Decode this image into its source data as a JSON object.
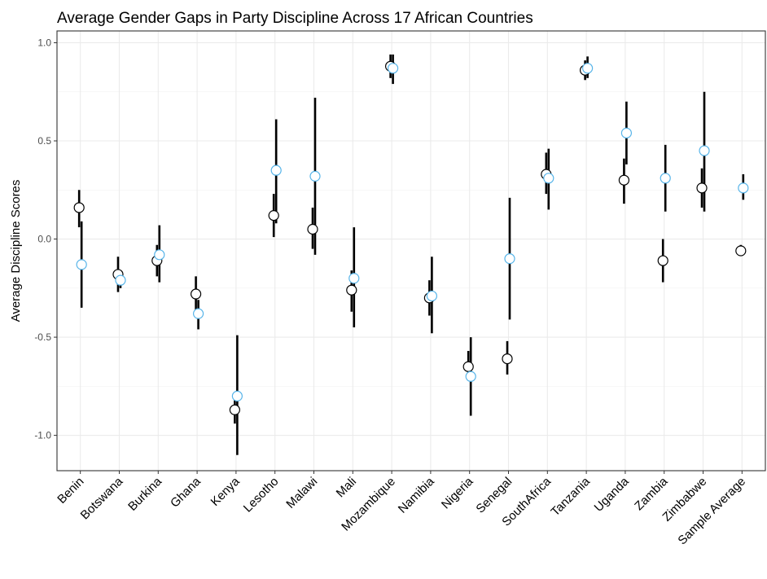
{
  "chart_data": {
    "type": "dot-errorbar",
    "title": "Average Gender Gaps in Party Discipline Across 17 African Countries",
    "y_label": "Average Discipline Scores",
    "categories": [
      "Benin",
      "Botswana",
      "Burkina",
      "Ghana",
      "Kenya",
      "Lesotho",
      "Malawi",
      "Mali",
      "Mozambique",
      "Namibia",
      "Nigeria",
      "Senegal",
      "SouthAfrica",
      "Tanzania",
      "Uganda",
      "Zambia",
      "Zimbabwe",
      "Sample Average"
    ],
    "series": [
      {
        "color": "#000000",
        "values": [
          0.16,
          -0.18,
          -0.11,
          -0.28,
          -0.87,
          0.12,
          0.05,
          -0.26,
          0.88,
          -0.3,
          -0.65,
          -0.61,
          0.33,
          0.86,
          0.3,
          -0.11,
          0.26,
          -0.06
        ],
        "lower": [
          0.06,
          -0.27,
          -0.19,
          -0.37,
          -0.94,
          0.01,
          -0.05,
          -0.37,
          0.82,
          -0.39,
          -0.72,
          -0.69,
          0.23,
          0.81,
          0.18,
          -0.22,
          0.16,
          -0.08
        ],
        "upper": [
          0.25,
          -0.09,
          -0.03,
          -0.19,
          -0.82,
          0.23,
          0.16,
          -0.16,
          0.94,
          -0.21,
          -0.57,
          -0.52,
          0.44,
          0.91,
          0.41,
          0.0,
          0.36,
          -0.03
        ]
      },
      {
        "color": "#56b4e9",
        "values": [
          -0.13,
          -0.21,
          -0.08,
          -0.38,
          -0.8,
          0.35,
          0.32,
          -0.2,
          0.87,
          -0.29,
          -0.7,
          -0.1,
          0.31,
          0.87,
          0.54,
          0.31,
          0.45,
          0.26
        ],
        "lower": [
          -0.35,
          -0.25,
          -0.22,
          -0.46,
          -1.1,
          0.08,
          -0.08,
          -0.45,
          0.79,
          -0.48,
          -0.9,
          -0.41,
          0.15,
          0.82,
          0.38,
          0.14,
          0.14,
          0.2
        ],
        "upper": [
          0.09,
          -0.16,
          0.07,
          -0.31,
          -0.49,
          0.61,
          0.72,
          0.06,
          0.94,
          -0.09,
          -0.5,
          0.21,
          0.46,
          0.93,
          0.7,
          0.48,
          0.75,
          0.33
        ]
      }
    ],
    "ylim": [
      -1.18,
      1.06
    ],
    "yticks": [
      {
        "value": -1.0,
        "label": "-1.0"
      },
      {
        "value": -0.5,
        "label": "-0.5"
      },
      {
        "value": 0.0,
        "label": "0.0"
      },
      {
        "value": 0.5,
        "label": "0.5"
      },
      {
        "value": 1.0,
        "label": "1.0"
      }
    ],
    "grid": true
  }
}
